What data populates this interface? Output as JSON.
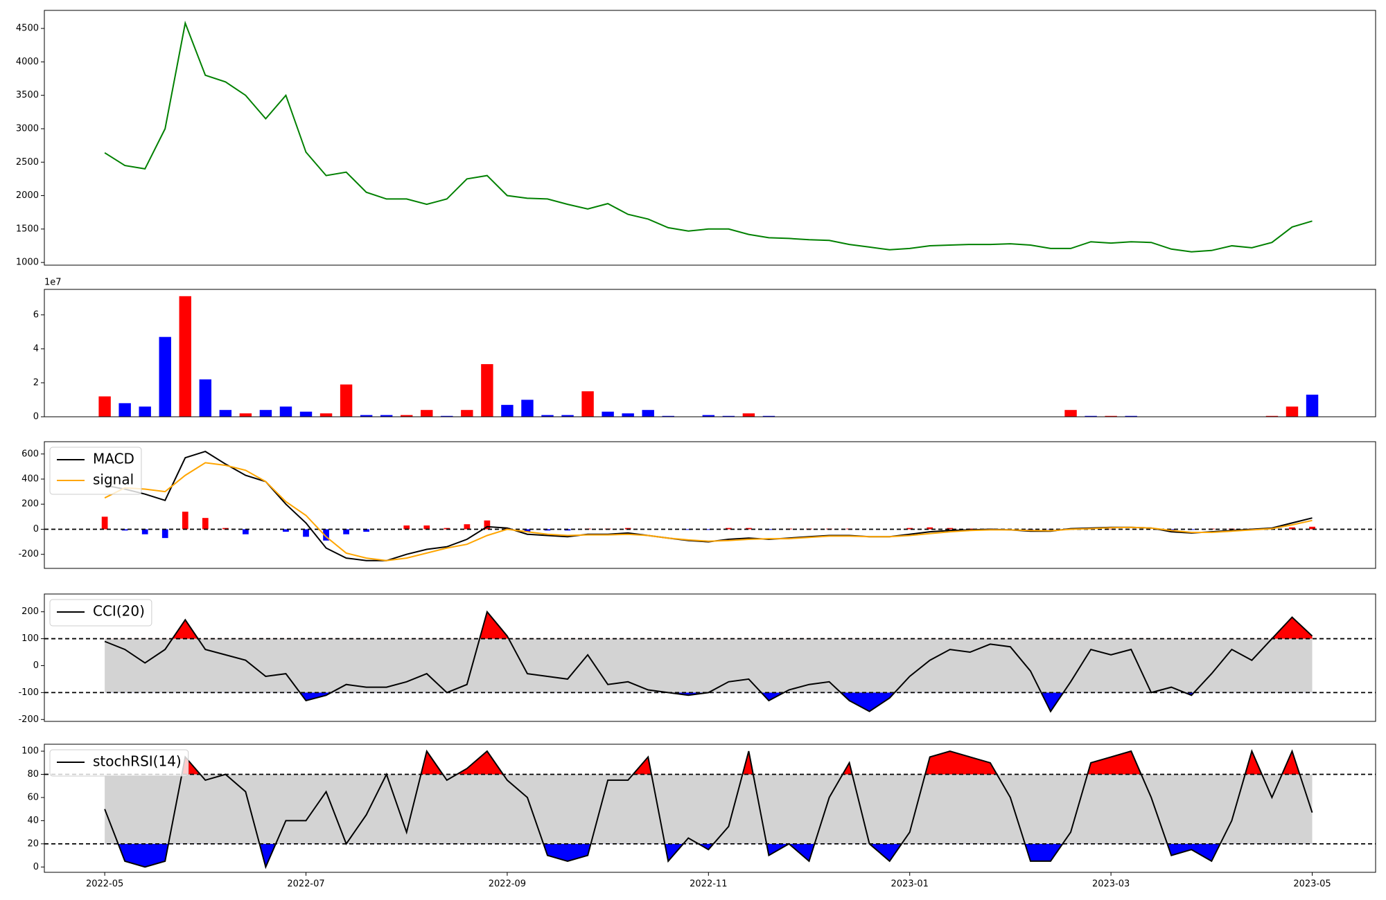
{
  "chart_data": [
    {
      "type": "line",
      "xlim": [
        4.4,
        17.63
      ],
      "ylim": [
        960,
        4770
      ],
      "yticks": [
        1000,
        1500,
        2000,
        2500,
        3000,
        3500,
        4000,
        4500
      ],
      "x": [
        5.0,
        5.2,
        5.4,
        5.6,
        5.8,
        6.0,
        6.2,
        6.4,
        6.6,
        6.8,
        7.0,
        7.2,
        7.4,
        7.6,
        7.8,
        8.0,
        8.2,
        8.4,
        8.6,
        8.8,
        9.0,
        9.2,
        9.4,
        9.6,
        9.8,
        10.0,
        10.2,
        10.4,
        10.6,
        10.8,
        11.0,
        11.2,
        11.4,
        11.6,
        11.8,
        12.0,
        12.2,
        12.4,
        12.6,
        12.8,
        13.0,
        13.2,
        13.4,
        13.6,
        13.8,
        14.0,
        14.2,
        14.4,
        14.6,
        14.8,
        15.0,
        15.2,
        15.4,
        15.6,
        15.8,
        16.0,
        16.2,
        16.4,
        16.6,
        16.8,
        17.0
      ],
      "series": [
        {
          "color": "#008000",
          "values": [
            2640,
            2450,
            2400,
            3000,
            4580,
            3800,
            3700,
            3500,
            3150,
            3500,
            2650,
            2300,
            2350,
            2050,
            1950,
            1950,
            1870,
            1950,
            2250,
            2300,
            2000,
            1960,
            1950,
            1870,
            1800,
            1880,
            1720,
            1650,
            1520,
            1470,
            1500,
            1500,
            1420,
            1370,
            1360,
            1340,
            1330,
            1270,
            1230,
            1190,
            1210,
            1250,
            1260,
            1270,
            1270,
            1280,
            1260,
            1210,
            1210,
            1310,
            1290,
            1310,
            1300,
            1200,
            1160,
            1180,
            1250,
            1220,
            1300,
            1530,
            1620
          ]
        }
      ]
    },
    {
      "type": "bar",
      "offset_label": "1e7",
      "xlim": [
        4.4,
        17.63
      ],
      "ylim": [
        0,
        7.5
      ],
      "yticks": [
        0,
        2,
        4,
        6
      ],
      "x": [
        5.0,
        5.2,
        5.4,
        5.6,
        5.8,
        6.0,
        6.2,
        6.4,
        6.6,
        6.8,
        7.0,
        7.2,
        7.4,
        7.6,
        7.8,
        8.0,
        8.2,
        8.4,
        8.6,
        8.8,
        9.0,
        9.2,
        9.4,
        9.6,
        9.8,
        10.0,
        10.2,
        10.4,
        10.6,
        10.8,
        11.0,
        11.2,
        11.4,
        11.6,
        11.8,
        12.0,
        12.2,
        12.4,
        12.6,
        12.8,
        13.0,
        13.2,
        13.4,
        13.6,
        13.8,
        14.0,
        14.2,
        14.4,
        14.6,
        14.8,
        15.0,
        15.2,
        15.4,
        15.6,
        15.8,
        16.0,
        16.2,
        16.4,
        16.6,
        16.8,
        17.0
      ],
      "values": [
        1.2,
        0.8,
        0.6,
        4.7,
        7.1,
        2.2,
        0.4,
        0.2,
        0.4,
        0.6,
        0.3,
        0.2,
        1.9,
        0.1,
        0.1,
        0.1,
        0.4,
        0.05,
        0.4,
        3.1,
        0.7,
        1.0,
        0.1,
        0.1,
        1.5,
        0.3,
        0.2,
        0.4,
        0.05,
        0.02,
        0.1,
        0.05,
        0.2,
        0.05,
        0.02,
        0.02,
        0.02,
        0.02,
        0.02,
        0.02,
        0.02,
        0.02,
        0.02,
        0.02,
        0.02,
        0.02,
        0.02,
        0.02,
        0.4,
        0.05,
        0.05,
        0.05,
        0.02,
        0.02,
        0.02,
        0.02,
        0.02,
        0.02,
        0.05,
        0.6,
        1.3
      ],
      "colors": [
        "red",
        "blue",
        "blue",
        "blue",
        "red",
        "blue",
        "blue",
        "red",
        "blue",
        "blue",
        "blue",
        "red",
        "red",
        "blue",
        "blue",
        "red",
        "red",
        "blue",
        "red",
        "red",
        "blue",
        "blue",
        "blue",
        "blue",
        "red",
        "blue",
        "blue",
        "blue",
        "blue",
        "blue",
        "blue",
        "blue",
        "red",
        "blue",
        "blue",
        "red",
        "blue",
        "blue",
        "red",
        "blue",
        "red",
        "blue",
        "blue",
        "blue",
        "red",
        "red",
        "blue",
        "blue",
        "red",
        "blue",
        "red",
        "blue",
        "blue",
        "blue",
        "blue",
        "blue",
        "blue",
        "blue",
        "red",
        "red",
        "blue"
      ]
    },
    {
      "type": "line",
      "legend": "upper left",
      "xlim": [
        4.4,
        17.63
      ],
      "ylim": [
        -312,
        698
      ],
      "yticks": [
        -200,
        0,
        200,
        400,
        600
      ],
      "hline": 0,
      "x": [
        5.0,
        5.2,
        5.4,
        5.6,
        5.8,
        6.0,
        6.2,
        6.4,
        6.6,
        6.8,
        7.0,
        7.2,
        7.4,
        7.6,
        7.8,
        8.0,
        8.2,
        8.4,
        8.6,
        8.8,
        9.0,
        9.2,
        9.4,
        9.6,
        9.8,
        10.0,
        10.2,
        10.4,
        10.6,
        10.8,
        11.0,
        11.2,
        11.4,
        11.6,
        11.8,
        12.0,
        12.2,
        12.4,
        12.6,
        12.8,
        13.0,
        13.2,
        13.4,
        13.6,
        13.8,
        14.0,
        14.2,
        14.4,
        14.6,
        14.8,
        15.0,
        15.2,
        15.4,
        15.6,
        15.8,
        16.0,
        16.2,
        16.4,
        16.6,
        16.8,
        17.0
      ],
      "histogram": {
        "pos_color": "red",
        "neg_color": "blue",
        "values": [
          100,
          -10,
          -40,
          -70,
          140,
          90,
          10,
          -40,
          0,
          -20,
          -60,
          -90,
          -40,
          -20,
          0,
          30,
          30,
          10,
          40,
          70,
          10,
          -20,
          -10,
          -10,
          5,
          5,
          10,
          0,
          0,
          -5,
          -5,
          10,
          10,
          -5,
          5,
          5,
          5,
          5,
          0,
          0,
          10,
          15,
          10,
          5,
          5,
          0,
          -5,
          -3,
          5,
          5,
          3,
          0,
          0,
          -10,
          -5,
          5,
          5,
          5,
          5,
          15,
          20
        ]
      },
      "series": [
        {
          "name": "MACD",
          "color": "#000000",
          "values": [
            350,
            320,
            280,
            230,
            570,
            620,
            520,
            430,
            380,
            200,
            50,
            -150,
            -230,
            -250,
            -250,
            -200,
            -160,
            -140,
            -80,
            20,
            10,
            -40,
            -50,
            -60,
            -40,
            -40,
            -30,
            -50,
            -70,
            -90,
            -100,
            -80,
            -70,
            -80,
            -70,
            -60,
            -50,
            -50,
            -60,
            -60,
            -40,
            -20,
            -10,
            -5,
            0,
            -5,
            -15,
            -15,
            5,
            10,
            15,
            15,
            10,
            -20,
            -30,
            -20,
            -10,
            0,
            10,
            50,
            90
          ]
        },
        {
          "name": "signal",
          "color": "#ffa500",
          "values": [
            250,
            330,
            320,
            300,
            430,
            530,
            510,
            470,
            380,
            220,
            110,
            -60,
            -190,
            -230,
            -250,
            -230,
            -190,
            -150,
            -120,
            -50,
            0,
            -20,
            -40,
            -50,
            -45,
            -45,
            -40,
            -50,
            -70,
            -85,
            -95,
            -90,
            -80,
            -75,
            -75,
            -65,
            -55,
            -55,
            -60,
            -60,
            -50,
            -35,
            -20,
            -10,
            -5,
            -5,
            -10,
            -12,
            0,
            5,
            12,
            15,
            10,
            -10,
            -25,
            -25,
            -15,
            -5,
            5,
            35,
            70
          ]
        }
      ]
    },
    {
      "type": "line",
      "legend": "upper left",
      "xlim": [
        4.4,
        17.63
      ],
      "ylim": [
        -207,
        266
      ],
      "yticks": [
        -200,
        -100,
        0,
        100,
        200
      ],
      "bands": [
        -100,
        100
      ],
      "band_color": "#d3d3d3",
      "above_color": "red",
      "below_color": "blue",
      "x": [
        5.0,
        5.2,
        5.4,
        5.6,
        5.8,
        6.0,
        6.2,
        6.4,
        6.6,
        6.8,
        7.0,
        7.2,
        7.4,
        7.6,
        7.8,
        8.0,
        8.2,
        8.4,
        8.6,
        8.8,
        9.0,
        9.2,
        9.4,
        9.6,
        9.8,
        10.0,
        10.2,
        10.4,
        10.6,
        10.8,
        11.0,
        11.2,
        11.4,
        11.6,
        11.8,
        12.0,
        12.2,
        12.4,
        12.6,
        12.8,
        13.0,
        13.2,
        13.4,
        13.6,
        13.8,
        14.0,
        14.2,
        14.4,
        14.6,
        14.8,
        15.0,
        15.2,
        15.4,
        15.6,
        15.8,
        16.0,
        16.2,
        16.4,
        16.6,
        16.8,
        17.0
      ],
      "series": [
        {
          "name": "CCI(20)",
          "color": "#000000",
          "values": [
            90,
            60,
            10,
            60,
            170,
            60,
            40,
            20,
            -40,
            -30,
            -130,
            -110,
            -70,
            -80,
            -80,
            -60,
            -30,
            -100,
            -70,
            200,
            110,
            -30,
            -40,
            -50,
            40,
            -70,
            -60,
            -90,
            -100,
            -110,
            -100,
            -60,
            -50,
            -130,
            -90,
            -70,
            -60,
            -130,
            -170,
            -120,
            -40,
            20,
            60,
            50,
            80,
            70,
            -20,
            -170,
            -60,
            60,
            40,
            60,
            -100,
            -80,
            -110,
            -30,
            60,
            20,
            100,
            180,
            110
          ]
        }
      ]
    },
    {
      "type": "line",
      "legend": "upper left",
      "xlim": [
        4.4,
        17.63
      ],
      "ylim": [
        -4.6,
        106
      ],
      "yticks": [
        0,
        20,
        40,
        60,
        80,
        100
      ],
      "bands": [
        20,
        80
      ],
      "band_color": "#d3d3d3",
      "above_color": "red",
      "below_color": "blue",
      "xticks": [
        {
          "value": 5,
          "label": "2022-05"
        },
        {
          "value": 7,
          "label": "2022-07"
        },
        {
          "value": 9,
          "label": "2022-09"
        },
        {
          "value": 11,
          "label": "2022-11"
        },
        {
          "value": 13,
          "label": "2023-01"
        },
        {
          "value": 15,
          "label": "2023-03"
        },
        {
          "value": 17,
          "label": "2023-05"
        }
      ],
      "x": [
        5.0,
        5.2,
        5.4,
        5.6,
        5.8,
        6.0,
        6.2,
        6.4,
        6.6,
        6.8,
        7.0,
        7.2,
        7.4,
        7.6,
        7.8,
        8.0,
        8.2,
        8.4,
        8.6,
        8.8,
        9.0,
        9.2,
        9.4,
        9.6,
        9.8,
        10.0,
        10.2,
        10.4,
        10.6,
        10.8,
        11.0,
        11.2,
        11.4,
        11.6,
        11.8,
        12.0,
        12.2,
        12.4,
        12.6,
        12.8,
        13.0,
        13.2,
        13.4,
        13.6,
        13.8,
        14.0,
        14.2,
        14.4,
        14.6,
        14.8,
        15.0,
        15.2,
        15.4,
        15.6,
        15.8,
        16.0,
        16.2,
        16.4,
        16.6,
        16.8,
        17.0
      ],
      "series": [
        {
          "name": "stochRSI(14)",
          "color": "#000000",
          "values": [
            50,
            5,
            0,
            5,
            95,
            75,
            80,
            65,
            0,
            40,
            40,
            65,
            20,
            45,
            80,
            30,
            100,
            75,
            85,
            100,
            75,
            60,
            10,
            5,
            10,
            75,
            75,
            95,
            5,
            25,
            15,
            35,
            100,
            10,
            20,
            5,
            60,
            90,
            20,
            5,
            30,
            95,
            100,
            95,
            90,
            60,
            5,
            5,
            30,
            90,
            95,
            100,
            60,
            10,
            15,
            5,
            40,
            100,
            60,
            100,
            47
          ]
        }
      ]
    }
  ]
}
